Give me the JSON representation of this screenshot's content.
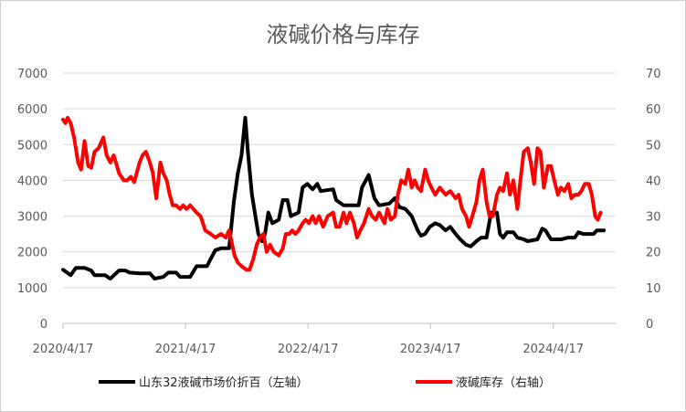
{
  "chart_data": {
    "type": "line",
    "title": "液碱价格与库存",
    "x_ticks": [
      "2020/4/17",
      "2021/4/17",
      "2022/4/17",
      "2023/4/17",
      "2024/4/17"
    ],
    "y_left": {
      "min": 0,
      "max": 7000,
      "ticks": [
        "0",
        "1000",
        "2000",
        "3000",
        "4000",
        "5000",
        "6000",
        "7000"
      ]
    },
    "y_right": {
      "min": 0,
      "max": 70,
      "ticks": [
        "0",
        "10",
        "20",
        "30",
        "40",
        "50",
        "60",
        "70"
      ]
    },
    "grid": true,
    "legend_position": "bottom",
    "series": [
      {
        "name": "山东32液碱市场价折百（左轴）",
        "axis": "left",
        "color": "#000000",
        "points": [
          [
            "2020-04-17",
            1500
          ],
          [
            "2020-05-10",
            1350
          ],
          [
            "2020-05-25",
            1550
          ],
          [
            "2020-06-20",
            1550
          ],
          [
            "2020-07-10",
            1480
          ],
          [
            "2020-07-20",
            1350
          ],
          [
            "2020-08-20",
            1350
          ],
          [
            "2020-09-05",
            1250
          ],
          [
            "2020-10-01",
            1480
          ],
          [
            "2020-10-20",
            1480
          ],
          [
            "2020-11-01",
            1420
          ],
          [
            "2020-12-01",
            1400
          ],
          [
            "2021-01-01",
            1400
          ],
          [
            "2021-01-15",
            1250
          ],
          [
            "2021-02-10",
            1300
          ],
          [
            "2021-02-25",
            1420
          ],
          [
            "2021-03-20",
            1420
          ],
          [
            "2021-04-01",
            1300
          ],
          [
            "2021-05-01",
            1300
          ],
          [
            "2021-05-20",
            1600
          ],
          [
            "2021-06-20",
            1600
          ],
          [
            "2021-07-01",
            1800
          ],
          [
            "2021-07-15",
            2050
          ],
          [
            "2021-08-01",
            2100
          ],
          [
            "2021-08-25",
            2100
          ],
          [
            "2021-09-08",
            3400
          ],
          [
            "2021-09-20",
            4200
          ],
          [
            "2021-10-01",
            4700
          ],
          [
            "2021-10-12",
            5750
          ],
          [
            "2021-10-20",
            4800
          ],
          [
            "2021-11-01",
            3600
          ],
          [
            "2021-11-20",
            2500
          ],
          [
            "2021-12-01",
            2300
          ],
          [
            "2021-12-10",
            2500
          ],
          [
            "2021-12-20",
            3100
          ],
          [
            "2022-01-01",
            2800
          ],
          [
            "2022-01-20",
            2900
          ],
          [
            "2022-02-01",
            3450
          ],
          [
            "2022-02-15",
            3450
          ],
          [
            "2022-02-25",
            3000
          ],
          [
            "2022-03-20",
            3100
          ],
          [
            "2022-04-01",
            3800
          ],
          [
            "2022-04-15",
            3900
          ],
          [
            "2022-05-01",
            3750
          ],
          [
            "2022-05-15",
            3900
          ],
          [
            "2022-05-25",
            3700
          ],
          [
            "2022-07-01",
            3750
          ],
          [
            "2022-07-10",
            3450
          ],
          [
            "2022-08-01",
            3300
          ],
          [
            "2022-09-01",
            3300
          ],
          [
            "2022-09-15",
            3300
          ],
          [
            "2022-09-25",
            3800
          ],
          [
            "2022-10-15",
            4150
          ],
          [
            "2022-11-01",
            3500
          ],
          [
            "2022-11-15",
            3300
          ],
          [
            "2022-12-15",
            3350
          ],
          [
            "2023-01-01",
            3500
          ],
          [
            "2023-01-15",
            3250
          ],
          [
            "2023-02-01",
            3200
          ],
          [
            "2023-02-20",
            3000
          ],
          [
            "2023-03-10",
            2600
          ],
          [
            "2023-03-20",
            2450
          ],
          [
            "2023-04-01",
            2500
          ],
          [
            "2023-04-15",
            2700
          ],
          [
            "2023-05-01",
            2800
          ],
          [
            "2023-05-15",
            2750
          ],
          [
            "2023-06-01",
            2600
          ],
          [
            "2023-06-15",
            2700
          ],
          [
            "2023-07-01",
            2500
          ],
          [
            "2023-07-15",
            2350
          ],
          [
            "2023-08-01",
            2200
          ],
          [
            "2023-08-15",
            2150
          ],
          [
            "2023-09-01",
            2300
          ],
          [
            "2023-09-15",
            2400
          ],
          [
            "2023-10-01",
            2400
          ],
          [
            "2023-10-15",
            3100
          ],
          [
            "2023-11-01",
            3100
          ],
          [
            "2023-11-10",
            2500
          ],
          [
            "2023-11-20",
            2400
          ],
          [
            "2023-12-01",
            2550
          ],
          [
            "2023-12-20",
            2550
          ],
          [
            "2024-01-01",
            2400
          ],
          [
            "2024-01-20",
            2350
          ],
          [
            "2024-02-01",
            2300
          ],
          [
            "2024-03-01",
            2350
          ],
          [
            "2024-03-15",
            2650
          ],
          [
            "2024-03-25",
            2600
          ],
          [
            "2024-04-10",
            2350
          ],
          [
            "2024-05-10",
            2350
          ],
          [
            "2024-06-01",
            2400
          ],
          [
            "2024-06-20",
            2400
          ],
          [
            "2024-07-01",
            2550
          ],
          [
            "2024-07-15",
            2500
          ],
          [
            "2024-08-15",
            2500
          ],
          [
            "2024-08-25",
            2600
          ],
          [
            "2024-09-15",
            2600
          ]
        ]
      },
      {
        "name": "液碱库存（右轴）",
        "axis": "right",
        "color": "#ff0000",
        "points": [
          [
            "2020-04-17",
            57
          ],
          [
            "2020-04-24",
            56
          ],
          [
            "2020-05-01",
            57.5
          ],
          [
            "2020-05-10",
            56
          ],
          [
            "2020-05-20",
            52
          ],
          [
            "2020-06-01",
            45
          ],
          [
            "2020-06-10",
            43
          ],
          [
            "2020-06-20",
            51
          ],
          [
            "2020-07-01",
            44
          ],
          [
            "2020-07-10",
            43.5
          ],
          [
            "2020-07-20",
            48
          ],
          [
            "2020-08-01",
            49
          ],
          [
            "2020-08-15",
            52
          ],
          [
            "2020-08-25",
            47
          ],
          [
            "2020-09-05",
            45
          ],
          [
            "2020-09-15",
            47
          ],
          [
            "2020-09-25",
            44
          ],
          [
            "2020-10-01",
            42
          ],
          [
            "2020-10-15",
            40
          ],
          [
            "2020-10-25",
            40
          ],
          [
            "2020-11-05",
            41
          ],
          [
            "2020-11-15",
            39.5
          ],
          [
            "2020-12-01",
            45
          ],
          [
            "2020-12-10",
            47
          ],
          [
            "2020-12-20",
            48
          ],
          [
            "2021-01-01",
            45
          ],
          [
            "2021-01-10",
            42
          ],
          [
            "2021-01-20",
            35
          ],
          [
            "2021-02-01",
            45
          ],
          [
            "2021-02-10",
            42
          ],
          [
            "2021-02-20",
            40
          ],
          [
            "2021-03-01",
            36
          ],
          [
            "2021-03-10",
            33
          ],
          [
            "2021-03-20",
            33
          ],
          [
            "2021-04-01",
            32
          ],
          [
            "2021-04-10",
            33
          ],
          [
            "2021-04-20",
            32
          ],
          [
            "2021-05-01",
            33
          ],
          [
            "2021-05-20",
            31
          ],
          [
            "2021-06-01",
            30
          ],
          [
            "2021-06-15",
            26
          ],
          [
            "2021-07-01",
            25
          ],
          [
            "2021-07-15",
            24
          ],
          [
            "2021-08-01",
            25
          ],
          [
            "2021-08-15",
            24
          ],
          [
            "2021-08-25",
            26
          ],
          [
            "2021-09-10",
            19
          ],
          [
            "2021-09-20",
            17
          ],
          [
            "2021-10-01",
            16
          ],
          [
            "2021-10-15",
            15
          ],
          [
            "2021-10-25",
            15
          ],
          [
            "2021-11-05",
            18
          ],
          [
            "2021-11-15",
            22
          ],
          [
            "2021-11-25",
            24
          ],
          [
            "2021-12-05",
            25
          ],
          [
            "2021-12-15",
            20
          ],
          [
            "2021-12-25",
            22
          ],
          [
            "2022-01-05",
            20
          ],
          [
            "2022-01-20",
            19
          ],
          [
            "2022-02-01",
            21
          ],
          [
            "2022-02-10",
            25
          ],
          [
            "2022-02-20",
            25
          ],
          [
            "2022-03-01",
            26
          ],
          [
            "2022-03-10",
            25
          ],
          [
            "2022-03-20",
            26
          ],
          [
            "2022-04-01",
            28
          ],
          [
            "2022-04-10",
            29
          ],
          [
            "2022-04-20",
            28
          ],
          [
            "2022-05-01",
            30
          ],
          [
            "2022-05-10",
            28
          ],
          [
            "2022-05-20",
            30
          ],
          [
            "2022-06-01",
            27
          ],
          [
            "2022-06-15",
            30
          ],
          [
            "2022-07-01",
            31
          ],
          [
            "2022-07-10",
            27
          ],
          [
            "2022-07-20",
            27
          ],
          [
            "2022-08-01",
            31
          ],
          [
            "2022-08-10",
            28
          ],
          [
            "2022-08-20",
            31
          ],
          [
            "2022-09-01",
            28
          ],
          [
            "2022-09-10",
            24
          ],
          [
            "2022-09-20",
            26
          ],
          [
            "2022-10-01",
            28
          ],
          [
            "2022-10-15",
            32
          ],
          [
            "2022-10-25",
            30
          ],
          [
            "2022-11-05",
            29
          ],
          [
            "2022-11-15",
            31
          ],
          [
            "2022-12-01",
            28
          ],
          [
            "2022-12-10",
            32
          ],
          [
            "2022-12-20",
            29
          ],
          [
            "2023-01-01",
            30
          ],
          [
            "2023-01-10",
            36
          ],
          [
            "2023-01-20",
            40
          ],
          [
            "2023-02-01",
            39
          ],
          [
            "2023-02-10",
            43
          ],
          [
            "2023-02-20",
            38
          ],
          [
            "2023-03-01",
            40
          ],
          [
            "2023-03-10",
            38
          ],
          [
            "2023-03-20",
            37
          ],
          [
            "2023-04-01",
            43
          ],
          [
            "2023-04-10",
            40
          ],
          [
            "2023-04-20",
            38
          ],
          [
            "2023-05-01",
            36
          ],
          [
            "2023-05-15",
            38
          ],
          [
            "2023-06-01",
            36
          ],
          [
            "2023-06-15",
            37
          ],
          [
            "2023-07-01",
            35
          ],
          [
            "2023-07-10",
            36
          ],
          [
            "2023-07-20",
            32
          ],
          [
            "2023-08-01",
            30
          ],
          [
            "2023-08-10",
            27
          ],
          [
            "2023-08-20",
            30
          ],
          [
            "2023-09-01",
            34
          ],
          [
            "2023-09-10",
            40
          ],
          [
            "2023-09-20",
            43
          ],
          [
            "2023-10-01",
            34
          ],
          [
            "2023-10-10",
            30
          ],
          [
            "2023-10-20",
            30
          ],
          [
            "2023-11-01",
            36
          ],
          [
            "2023-11-10",
            38
          ],
          [
            "2023-11-20",
            37
          ],
          [
            "2023-12-01",
            42
          ],
          [
            "2023-12-10",
            36
          ],
          [
            "2023-12-20",
            40
          ],
          [
            "2024-01-01",
            32
          ],
          [
            "2024-01-10",
            40
          ],
          [
            "2024-01-20",
            48
          ],
          [
            "2024-02-01",
            49
          ],
          [
            "2024-02-10",
            45
          ],
          [
            "2024-02-20",
            39
          ],
          [
            "2024-03-01",
            49
          ],
          [
            "2024-03-10",
            48
          ],
          [
            "2024-03-20",
            38
          ],
          [
            "2024-04-01",
            44
          ],
          [
            "2024-04-10",
            44
          ],
          [
            "2024-04-20",
            40
          ],
          [
            "2024-05-01",
            36
          ],
          [
            "2024-05-10",
            38
          ],
          [
            "2024-05-20",
            37
          ],
          [
            "2024-06-01",
            39
          ],
          [
            "2024-06-10",
            35
          ],
          [
            "2024-06-20",
            36
          ],
          [
            "2024-07-01",
            36
          ],
          [
            "2024-07-10",
            37
          ],
          [
            "2024-07-20",
            39
          ],
          [
            "2024-08-01",
            39
          ],
          [
            "2024-08-10",
            36
          ],
          [
            "2024-08-20",
            30
          ],
          [
            "2024-08-28",
            29
          ],
          [
            "2024-09-05",
            31
          ]
        ]
      }
    ]
  }
}
